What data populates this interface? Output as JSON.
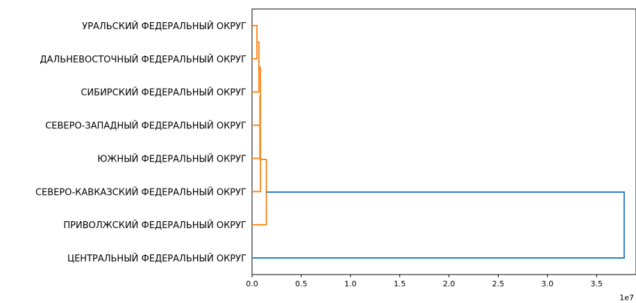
{
  "chart_data": {
    "type": "dendrogram",
    "orientation": "left",
    "leaves": [
      "ЦЕНТРАЛЬНЫЙ ФЕДЕРАЛЬНЫЙ ОКРУГ",
      "ПРИВОЛЖСКИЙ ФЕДЕРАЛЬНЫЙ ОКРУГ",
      "СЕВЕРО-КАВКАЗСКИЙ ФЕДЕРАЛЬНЫЙ ОКРУГ",
      "ЮЖНЫЙ ФЕДЕРАЛЬНЫЙ ОКРУГ",
      "СЕВЕРО-ЗАПАДНЫЙ ФЕДЕРАЛЬНЫЙ ОКРУГ",
      "СИБИРСКИЙ ФЕДЕРАЛЬНЫЙ ОКРУГ",
      "ДАЛЬНЕВОСТОЧНЫЙ ФЕДЕРАЛЬНЫЙ ОКРУГ",
      "УРАЛЬСКИЙ ФЕДЕРАЛЬНЫЙ ОКРУГ"
    ],
    "merges": [
      {
        "a": "ДАЛЬНЕВОСТОЧНЫЙ ФЕДЕРАЛЬНЫЙ ОКРУГ",
        "b": "УРАЛЬСКИЙ ФЕДЕРАЛЬНЫЙ ОКРУГ",
        "height": 500000,
        "color": "#ff7f0e"
      },
      {
        "a": "СИБИРСКИЙ ФЕДЕРАЛЬНЫЙ ОКРУГ",
        "b": "cluster(ДАЛЬНЕВОСТОЧНЫЙ, УРАЛЬСКИЙ)",
        "height": 700000,
        "color": "#ff7f0e"
      },
      {
        "a": "СЕВЕРО-ЗАПАДНЫЙ ФЕДЕРАЛЬНЫЙ ОКРУГ",
        "b": "cluster(СИБИРСКИЙ, ДАЛЬНЕВОСТОЧНЫЙ, УРАЛЬСКИЙ)",
        "height": 850000,
        "color": "#ff7f0e"
      },
      {
        "a": "ЮЖНЫЙ ФЕДЕРАЛЬНЫЙ ОКРУГ",
        "b": "cluster(СЕВЕРО-ЗАПАДНЫЙ, СИБИРСКИЙ, ДАЛЬНЕВОСТОЧНЫЙ, УРАЛЬСКИЙ)",
        "height": 800000,
        "color": "#ff7f0e"
      },
      {
        "a": "СЕВЕРО-КАВКАЗСКИЙ ФЕДЕРАЛЬНЫЙ ОКРУГ",
        "b": "cluster(ЮЖНЫЙ, СЕВЕРО-ЗАПАДНЫЙ, СИБИРСКИЙ, ДАЛЬНЕВОСТОЧНЫЙ, УРАЛЬСКИЙ)",
        "height": 850000,
        "color": "#ff7f0e"
      },
      {
        "a": "ПРИВОЛЖСКИЙ ФЕДЕРАЛЬНЫЙ ОКРУГ",
        "b": "cluster(all except ЦЕНТРАЛЬНЫЙ, ПРИВОЛЖСКИЙ)",
        "height": 1450000,
        "color": "#ff7f0e"
      },
      {
        "a": "ЦЕНТРАЛЬНЫЙ ФЕДЕРАЛЬНЫЙ ОКРУГ",
        "b": "cluster(all others)",
        "height": 37800000,
        "color": "#1f77b4"
      }
    ],
    "x_ticks": [
      0,
      0.5,
      1.0,
      1.5,
      2.0,
      2.5,
      3.0,
      3.5
    ],
    "x_tick_labels": [
      "0.0",
      "0.5",
      "1.0",
      "1.5",
      "2.0",
      "2.5",
      "3.0",
      "3.5"
    ],
    "x_offset_label": "1e7",
    "xlim": [
      0,
      39000000
    ],
    "title": "",
    "xlabel": "",
    "ylabel": "",
    "colors": {
      "cluster": "#ff7f0e",
      "above_threshold": "#1f77b4",
      "axes": "#000000"
    }
  }
}
